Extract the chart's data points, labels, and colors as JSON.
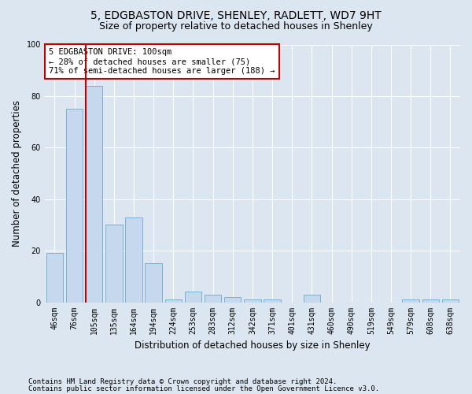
{
  "title_line1": "5, EDGBASTON DRIVE, SHENLEY, RADLETT, WD7 9HT",
  "title_line2": "Size of property relative to detached houses in Shenley",
  "xlabel": "Distribution of detached houses by size in Shenley",
  "ylabel": "Number of detached properties",
  "categories": [
    "46sqm",
    "76sqm",
    "105sqm",
    "135sqm",
    "164sqm",
    "194sqm",
    "224sqm",
    "253sqm",
    "283sqm",
    "312sqm",
    "342sqm",
    "371sqm",
    "401sqm",
    "431sqm",
    "460sqm",
    "490sqm",
    "519sqm",
    "549sqm",
    "579sqm",
    "608sqm",
    "638sqm"
  ],
  "values": [
    19,
    75,
    84,
    30,
    33,
    15,
    1,
    4,
    3,
    2,
    1,
    1,
    0,
    3,
    0,
    0,
    0,
    0,
    1,
    1,
    1
  ],
  "bar_color": "#c5d8ee",
  "bar_edge_color": "#7bafd4",
  "vline_color": "#c00000",
  "annotation_text": "5 EDGBASTON DRIVE: 100sqm\n← 28% of detached houses are smaller (75)\n71% of semi-detached houses are larger (188) →",
  "annotation_box_color": "#ffffff",
  "annotation_box_edge": "#c00000",
  "ylim": [
    0,
    100
  ],
  "yticks": [
    0,
    20,
    40,
    60,
    80,
    100
  ],
  "background_color": "#dce6f1",
  "plot_bg_color": "#dce6f1",
  "footer_line1": "Contains HM Land Registry data © Crown copyright and database right 2024.",
  "footer_line2": "Contains public sector information licensed under the Open Government Licence v3.0.",
  "title_fontsize": 10,
  "subtitle_fontsize": 9,
  "axis_label_fontsize": 8.5,
  "tick_fontsize": 7,
  "annotation_fontsize": 7.5,
  "footer_fontsize": 6.5
}
